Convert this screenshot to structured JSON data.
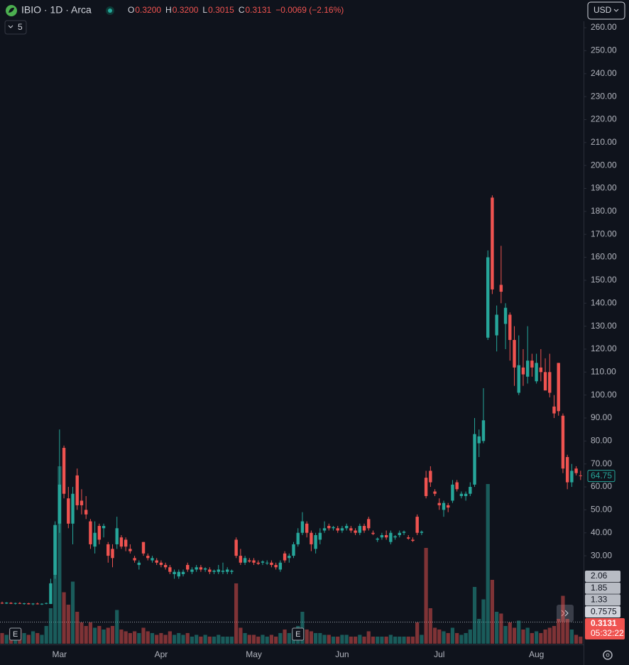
{
  "chart_data": {
    "type": "candlestick",
    "symbol": "IBIO · 1D · Arca",
    "ohlc": [
      {
        "key": "O",
        "value": "0.3200"
      },
      {
        "key": "H",
        "value": "0.3200"
      },
      {
        "key": "L",
        "value": "0.3015"
      },
      {
        "key": "C",
        "value": "0.3131"
      }
    ],
    "change": "−0.0069 (−2.16%)",
    "currency": "USD",
    "indicator_count": "5",
    "up_color": "#26a69a",
    "down_color": "#ef5350",
    "ylim": [
      -8.3,
      262.8
    ],
    "yticks": [
      {
        "value": 30,
        "label": "30.00"
      },
      {
        "value": 40,
        "label": "40.00"
      },
      {
        "value": 50,
        "label": "50.00"
      },
      {
        "value": 60,
        "label": "60.00"
      },
      {
        "value": 70,
        "label": "70.00"
      },
      {
        "value": 80,
        "label": "80.00"
      },
      {
        "value": 90,
        "label": "90.00"
      },
      {
        "value": 100,
        "label": "100.00"
      },
      {
        "value": 110,
        "label": "110.00"
      },
      {
        "value": 120,
        "label": "120.00"
      },
      {
        "value": 130,
        "label": "130.00"
      },
      {
        "value": 140,
        "label": "140.00"
      },
      {
        "value": 150,
        "label": "150.00"
      },
      {
        "value": 160,
        "label": "160.00"
      },
      {
        "value": 170,
        "label": "170.00"
      },
      {
        "value": 180,
        "label": "180.00"
      },
      {
        "value": 190,
        "label": "190.00"
      },
      {
        "value": 200,
        "label": "200.00"
      },
      {
        "value": 210,
        "label": "210.00"
      },
      {
        "value": 220,
        "label": "220.00"
      },
      {
        "value": 230,
        "label": "230.00"
      },
      {
        "value": 240,
        "label": "240.00"
      },
      {
        "value": 250,
        "label": "250.00"
      },
      {
        "value": 260,
        "label": "260.00"
      }
    ],
    "last_price": {
      "value": 64.75,
      "label": "64.75"
    },
    "side_labels": [
      "2.06",
      "1.85",
      "1.33",
      "0.7575"
    ],
    "current_label": "0.3131",
    "countdown": "05:32:22",
    "earnings": [
      {
        "label": "E",
        "index": 3
      },
      {
        "label": "E",
        "index": 67
      }
    ],
    "categories": [
      null,
      null,
      null,
      null,
      null,
      null,
      null,
      null,
      null,
      null,
      null,
      null,
      null,
      "Mar",
      null,
      null,
      null,
      null,
      null,
      null,
      null,
      null,
      null,
      null,
      null,
      null,
      null,
      null,
      null,
      null,
      null,
      null,
      null,
      null,
      null,
      null,
      "Apr",
      null,
      null,
      null,
      null,
      null,
      null,
      null,
      null,
      null,
      null,
      null,
      null,
      null,
      null,
      null,
      null,
      null,
      null,
      null,
      null,
      "May",
      null,
      null,
      null,
      null,
      null,
      null,
      null,
      null,
      null,
      null,
      null,
      null,
      null,
      null,
      null,
      null,
      null,
      null,
      null,
      "Jun",
      null,
      null,
      null,
      null,
      null,
      null,
      null,
      null,
      null,
      null,
      null,
      null,
      null,
      null,
      null,
      null,
      null,
      null,
      null,
      null,
      null,
      "Jul",
      null,
      null,
      null,
      null,
      null,
      null,
      null,
      null,
      null,
      null,
      null,
      null,
      null,
      null,
      null,
      null,
      null,
      null,
      null,
      null,
      null,
      "Aug",
      null,
      null,
      null,
      null,
      null,
      null,
      null,
      null,
      null,
      null
    ],
    "candles": [
      [
        9.5,
        10,
        9,
        9.2
      ],
      [
        9.2,
        9.8,
        9,
        9.6
      ],
      [
        9.5,
        9.8,
        9,
        9.1
      ],
      [
        9.1,
        9.6,
        8.8,
        9.4
      ],
      [
        9.4,
        9.8,
        9,
        9.1
      ],
      [
        9,
        9.5,
        8.7,
        9.3
      ],
      [
        9.3,
        9.5,
        8.8,
        8.9
      ],
      [
        8.9,
        9.4,
        8.5,
        9.2
      ],
      [
        9.2,
        9.6,
        8.8,
        8.9
      ],
      [
        8.9,
        9.3,
        8.6,
        9.1
      ],
      [
        9.1,
        9.6,
        8.9,
        9.4
      ],
      [
        9,
        20,
        9,
        18
      ],
      [
        21.7,
        45,
        20,
        43.3
      ],
      [
        44,
        85,
        40,
        61
      ],
      [
        77,
        78,
        55,
        57
      ],
      [
        55,
        60,
        42,
        44
      ],
      [
        44,
        60,
        35,
        57
      ],
      [
        65,
        68,
        50,
        52
      ],
      [
        54,
        59,
        48,
        52
      ],
      [
        50,
        56,
        46,
        48
      ],
      [
        45,
        46,
        33,
        35
      ],
      [
        34,
        45,
        31,
        40
      ],
      [
        43,
        44,
        35,
        37
      ],
      [
        42,
        44,
        38,
        43
      ],
      [
        35,
        36,
        27,
        30
      ],
      [
        33,
        35,
        25,
        29
      ],
      [
        35,
        47,
        33,
        42
      ],
      [
        38,
        39,
        33,
        34
      ],
      [
        37,
        38,
        32,
        34
      ],
      [
        33,
        35,
        31,
        32
      ],
      [
        29,
        30,
        27,
        28
      ],
      [
        26,
        28,
        24,
        27
      ],
      [
        36,
        36,
        30,
        31
      ],
      [
        30,
        31,
        28,
        29
      ],
      [
        28,
        30,
        27,
        29
      ],
      [
        28,
        29,
        26,
        27
      ],
      [
        27,
        28,
        25,
        26
      ],
      [
        26,
        27,
        24,
        25
      ],
      [
        25,
        26,
        22,
        23
      ],
      [
        22,
        24,
        20,
        23
      ],
      [
        21,
        24,
        20,
        23
      ],
      [
        22,
        24,
        21,
        23
      ],
      [
        26,
        27,
        23,
        24
      ],
      [
        23,
        25,
        22,
        24
      ],
      [
        24,
        26,
        23,
        25
      ],
      [
        25,
        26,
        23,
        24
      ],
      [
        24,
        25,
        23,
        24.5
      ],
      [
        24,
        25,
        22,
        23
      ],
      [
        23,
        24,
        22,
        23.5
      ],
      [
        23,
        26,
        22,
        24
      ],
      [
        23,
        27,
        22,
        23.5
      ],
      [
        23,
        25,
        22,
        24
      ],
      [
        23,
        24,
        22,
        23.5
      ],
      [
        37,
        38,
        29,
        30
      ],
      [
        30,
        33,
        26,
        27
      ],
      [
        27,
        30,
        26,
        29
      ],
      [
        28,
        29,
        27,
        27.5
      ],
      [
        28,
        29,
        26,
        27
      ],
      [
        27,
        28,
        26,
        26.5
      ],
      [
        27,
        28,
        26,
        27.5
      ],
      [
        27,
        28,
        26,
        27
      ],
      [
        27,
        28,
        25,
        26
      ],
      [
        26,
        27,
        24,
        25
      ],
      [
        24,
        28,
        23,
        27
      ],
      [
        31,
        32,
        27,
        28
      ],
      [
        29,
        31,
        27,
        30
      ],
      [
        30,
        36,
        29,
        35
      ],
      [
        35,
        42,
        34,
        40
      ],
      [
        40,
        49,
        39,
        45
      ],
      [
        44,
        45,
        38,
        40
      ],
      [
        40,
        41,
        32,
        35
      ],
      [
        33,
        40,
        31,
        39
      ],
      [
        37,
        42,
        35,
        40
      ],
      [
        41,
        45,
        40,
        42
      ],
      [
        43,
        44,
        41,
        42
      ],
      [
        42,
        43,
        41,
        42.5
      ],
      [
        42,
        43,
        40,
        41
      ],
      [
        41,
        43,
        40,
        42
      ],
      [
        42,
        44,
        41,
        43
      ],
      [
        42,
        43,
        40,
        41
      ],
      [
        41,
        42,
        39,
        40
      ],
      [
        40,
        44,
        39,
        43
      ],
      [
        43,
        44,
        40,
        41
      ],
      [
        46,
        47,
        41,
        42
      ],
      [
        40,
        41,
        39,
        39.5
      ],
      [
        37,
        38,
        36,
        37.5
      ],
      [
        38,
        40,
        37,
        39
      ],
      [
        39,
        41,
        37,
        38
      ],
      [
        36,
        41,
        35,
        40
      ],
      [
        38,
        39,
        37,
        38.5
      ],
      [
        39,
        41,
        38,
        40
      ],
      [
        40,
        41,
        39,
        40.5
      ],
      [
        38,
        39,
        37,
        37.5
      ],
      [
        37,
        38,
        36,
        36.5
      ],
      [
        47,
        48,
        39,
        40
      ],
      [
        40,
        41,
        39,
        40.5
      ],
      [
        64,
        67,
        55,
        56
      ],
      [
        67,
        69,
        60,
        62
      ],
      [
        58,
        59,
        56,
        57
      ],
      [
        53,
        55,
        50,
        52
      ],
      [
        50,
        54,
        47,
        53
      ],
      [
        52,
        53,
        49,
        51
      ],
      [
        54,
        63,
        53,
        61
      ],
      [
        62,
        63,
        58,
        59
      ],
      [
        56,
        58,
        55,
        57
      ],
      [
        56,
        58,
        54,
        57
      ],
      [
        57,
        62,
        56,
        60
      ],
      [
        61,
        90,
        60,
        83
      ],
      [
        79,
        85,
        73,
        82
      ],
      [
        80,
        103,
        79,
        89
      ],
      [
        125,
        163,
        124,
        160
      ],
      [
        186,
        187,
        144,
        146
      ],
      [
        126,
        139,
        119,
        135
      ],
      [
        148,
        165,
        140,
        145
      ],
      [
        131,
        140,
        120,
        138
      ],
      [
        135,
        136,
        115,
        124
      ],
      [
        124,
        130,
        104,
        112
      ],
      [
        101,
        126,
        100,
        113
      ],
      [
        112,
        120,
        104,
        109
      ],
      [
        108,
        130,
        105,
        115
      ],
      [
        115,
        118,
        108,
        112
      ],
      [
        106,
        118,
        105,
        114
      ],
      [
        112,
        120,
        106,
        110
      ],
      [
        110,
        116,
        103,
        102
      ],
      [
        110,
        118,
        99,
        101
      ],
      [
        95,
        100,
        90,
        92
      ],
      [
        114,
        114,
        91,
        93
      ],
      [
        91,
        92,
        66,
        68
      ],
      [
        73,
        74,
        59,
        62
      ],
      [
        62,
        70,
        60,
        67
      ],
      [
        68,
        69,
        65,
        66
      ],
      [
        65,
        67,
        63,
        64.75
      ]
    ],
    "volume": [
      6,
      5,
      7,
      5,
      8,
      6,
      5,
      7,
      6,
      5,
      10,
      20,
      67,
      100,
      29,
      22,
      35,
      18,
      12,
      10,
      12,
      9,
      10,
      8,
      9,
      10,
      19,
      8,
      7,
      6,
      7,
      6,
      9,
      7,
      6,
      5,
      6,
      5,
      7,
      5,
      6,
      5,
      6,
      4,
      5,
      4,
      5,
      4,
      4,
      5,
      4,
      4,
      4,
      34,
      9,
      6,
      5,
      5,
      4,
      5,
      4,
      5,
      4,
      6,
      8,
      6,
      7,
      10,
      18,
      8,
      7,
      6,
      6,
      5,
      5,
      4,
      4,
      5,
      5,
      4,
      4,
      5,
      4,
      7,
      4,
      4,
      4,
      4,
      5,
      4,
      4,
      4,
      4,
      4,
      12,
      5,
      54,
      20,
      9,
      8,
      7,
      6,
      9,
      6,
      5,
      6,
      8,
      32,
      14,
      25,
      90,
      36,
      18,
      17,
      10,
      12,
      9,
      13,
      8,
      9,
      6,
      7,
      6,
      8,
      9,
      10,
      14,
      27,
      14,
      8,
      5,
      4
    ]
  }
}
